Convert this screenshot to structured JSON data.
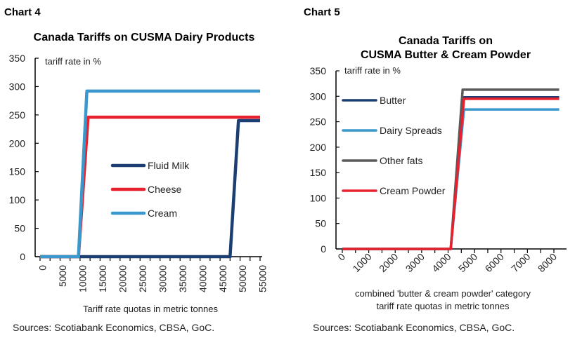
{
  "chart_data": [
    {
      "header": "Chart 4",
      "type": "line",
      "title": "Canada Tariffs on CUSMA Dairy Products",
      "ylabel": "tariff rate in %",
      "xlabel": "Tariff rate quotas in metric tonnes",
      "sources": "Sources: Scotiabank Economics, CBSA, GoC.",
      "xlim": [
        0,
        55000
      ],
      "ylim": [
        0,
        350
      ],
      "yticks": [
        "0",
        "50",
        "100",
        "150",
        "200",
        "250",
        "300",
        "350"
      ],
      "xticks": [
        "0",
        "5000",
        "10000",
        "15000",
        "20000",
        "25000",
        "30000",
        "35000",
        "40000",
        "45000",
        "50000",
        "55000"
      ],
      "legend_placement": "center",
      "grid": false,
      "series": [
        {
          "name": "Fluid Milk",
          "color": "#1c3f73",
          "points": [
            [
              0,
              0
            ],
            [
              47500,
              0
            ],
            [
              49600,
              240
            ],
            [
              55000,
              240
            ]
          ]
        },
        {
          "name": "Cheese",
          "color": "#e8212e",
          "points": [
            [
              0,
              0
            ],
            [
              9600,
              0
            ],
            [
              12000,
              246
            ],
            [
              55000,
              246
            ]
          ]
        },
        {
          "name": "Cream",
          "color": "#3a98cc",
          "points": [
            [
              0,
              0
            ],
            [
              9600,
              0
            ],
            [
              11700,
              292
            ],
            [
              55000,
              292
            ]
          ]
        }
      ]
    },
    {
      "header": "Chart 5",
      "type": "line",
      "title": [
        "Canada Tariffs on",
        "CUSMA Butter & Cream Powder"
      ],
      "ylabel": "tariff rate in %",
      "xlabel": [
        "combined 'butter & cream powder' category",
        "tariff rate quotas in metric tonnes"
      ],
      "sources": "Sources: Scotiabank Economics, CBSA, GoC.",
      "xlim": [
        0,
        8000
      ],
      "ylim": [
        0,
        350
      ],
      "yticks": [
        "0",
        "50",
        "100",
        "150",
        "200",
        "250",
        "300",
        "350"
      ],
      "xticks": [
        "0",
        "1000",
        "2000",
        "3000",
        "4000",
        "5000",
        "6000",
        "7000",
        "8000"
      ],
      "legend_placement": "left",
      "grid": false,
      "series": [
        {
          "name": "Butter",
          "color": "#1c3f73",
          "points": [
            [
              0,
              0
            ],
            [
              4100,
              0
            ],
            [
              4600,
              298
            ],
            [
              8200,
              298
            ]
          ]
        },
        {
          "name": "Dairy Spreads",
          "color": "#3a98cc",
          "points": [
            [
              0,
              0
            ],
            [
              4100,
              0
            ],
            [
              4600,
              274
            ],
            [
              8200,
              274
            ]
          ]
        },
        {
          "name": "Other fats",
          "color": "#5a5a5a",
          "points": [
            [
              0,
              0
            ],
            [
              4100,
              0
            ],
            [
              4550,
              313
            ],
            [
              8200,
              313
            ]
          ]
        },
        {
          "name": "Cream Powder",
          "color": "#e8212e",
          "points": [
            [
              0,
              0
            ],
            [
              4100,
              0
            ],
            [
              4600,
              295
            ],
            [
              8200,
              295
            ]
          ]
        }
      ]
    }
  ]
}
